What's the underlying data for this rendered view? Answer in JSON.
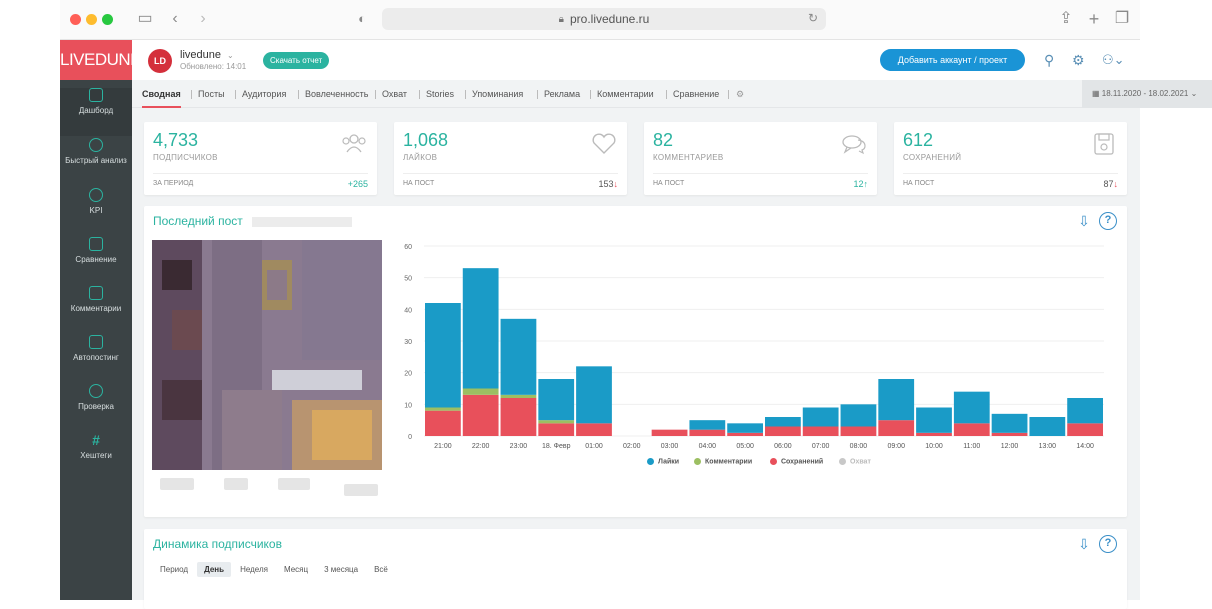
{
  "browser": {
    "url": "pro.livedune.ru"
  },
  "logo": "LIVEDUNE",
  "sidebar": {
    "items": [
      {
        "label": "Дашборд"
      },
      {
        "label": "Быстрый анализ"
      },
      {
        "label": "KPI"
      },
      {
        "label": "Сравнение"
      },
      {
        "label": "Комментарии"
      },
      {
        "label": "Автопостинг"
      },
      {
        "label": "Проверка"
      },
      {
        "label": "Хештеги"
      }
    ]
  },
  "header": {
    "avatar_initials": "LD",
    "account_name": "livedune",
    "updated": "Обновлено: 14:01",
    "report_button": "Скачать отчет",
    "add_account_button": "Добавить аккаунт / проект"
  },
  "tabs": [
    {
      "label": "Сводная"
    },
    {
      "label": "Посты"
    },
    {
      "label": "Аудитория"
    },
    {
      "label": "Вовлеченность"
    },
    {
      "label": "Охват"
    },
    {
      "label": "Stories"
    },
    {
      "label": "Упоминания"
    },
    {
      "label": "Реклама"
    },
    {
      "label": "Комментарии"
    },
    {
      "label": "Сравнение"
    }
  ],
  "date_range": "18.11.2020 - 18.02.2021",
  "stats": [
    {
      "value": "4,733",
      "label": "ПОДПИСЧИКОВ",
      "foot_label": "ЗА ПЕРИОД",
      "foot_value": "+265",
      "icon": "people-icon"
    },
    {
      "value": "1,068",
      "label": "ЛАЙКОВ",
      "foot_label": "НА ПОСТ",
      "foot_value": "153",
      "trend": "down",
      "icon": "heart-icon"
    },
    {
      "value": "82",
      "label": "КОММЕНТАРИЕВ",
      "foot_label": "НА ПОСТ",
      "foot_value": "12",
      "trend": "up",
      "icon": "comments-icon"
    },
    {
      "value": "612",
      "label": "СОХРАНЕНИЙ",
      "foot_label": "НА ПОСТ",
      "foot_value": "87",
      "trend": "down",
      "icon": "save-icon"
    }
  ],
  "last_post": {
    "title": "Последний пост"
  },
  "subscribers_panel": {
    "title": "Динамика подписчиков",
    "period_label": "Период",
    "periods": [
      "День",
      "Неделя",
      "Месяц",
      "3 месяца",
      "Всё"
    ]
  },
  "colors": {
    "likes": "#1a9bc7",
    "comments": "#9cbf62",
    "saves": "#e8505b",
    "reach": "#c8c8c8"
  },
  "chart_data": {
    "type": "bar",
    "stacked": true,
    "categories": [
      "21:00",
      "22:00",
      "23:00",
      "18. Февр",
      "01:00",
      "02:00",
      "03:00",
      "04:00",
      "05:00",
      "06:00",
      "07:00",
      "08:00",
      "09:00",
      "10:00",
      "11:00",
      "12:00",
      "13:00",
      "14:00"
    ],
    "ylim": [
      0,
      60
    ],
    "yticks": [
      0,
      10,
      20,
      30,
      40,
      50,
      60
    ],
    "grid": true,
    "legend_position": "bottom",
    "series": [
      {
        "name": "Сохранений",
        "values": [
          8,
          13,
          12,
          4,
          4,
          0,
          2,
          2,
          1,
          3,
          3,
          3,
          5,
          1,
          4,
          1,
          0,
          4
        ]
      },
      {
        "name": "Комментарии",
        "values": [
          1,
          2,
          1,
          1,
          0,
          0,
          0,
          0,
          0,
          0,
          0,
          0,
          0,
          0,
          0,
          0,
          0,
          0
        ]
      },
      {
        "name": "Лайки",
        "values": [
          33,
          38,
          24,
          13,
          18,
          0,
          0,
          3,
          3,
          3,
          6,
          7,
          13,
          8,
          10,
          6,
          6,
          8
        ]
      },
      {
        "name": "Охват",
        "values": [
          0,
          0,
          0,
          0,
          0,
          0,
          0,
          0,
          0,
          0,
          0,
          0,
          0,
          0,
          0,
          0,
          0,
          0
        ]
      }
    ]
  }
}
